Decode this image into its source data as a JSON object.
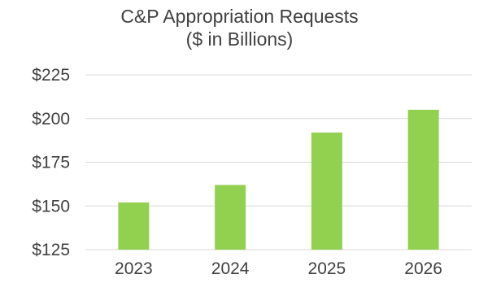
{
  "chart_data": {
    "type": "bar",
    "title": "C&P Appropriation Requests",
    "subtitle": "($ in Billions)",
    "categories": [
      "2023",
      "2024",
      "2025",
      "2026"
    ],
    "series": [
      {
        "values": [
          152,
          162,
          192,
          205
        ],
        "color": "#92d050"
      }
    ],
    "ylim": [
      125,
      225
    ],
    "yticks": [
      125,
      150,
      175,
      200,
      225
    ],
    "ytick_labels": [
      "$125",
      "$150",
      "$175",
      "$200",
      "$225"
    ],
    "grid": true,
    "legend": "none",
    "xlabel": "",
    "ylabel": ""
  }
}
